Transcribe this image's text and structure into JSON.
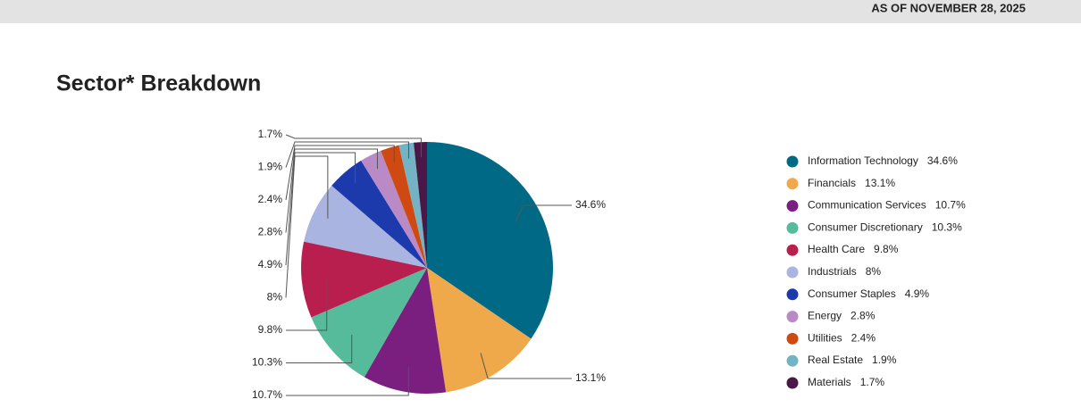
{
  "header": {
    "as_of": "AS OF  NOVEMBER 28, 2025"
  },
  "chart_data": {
    "type": "pie",
    "title": "Sector* Breakdown",
    "categories": [
      "Information Technology",
      "Financials",
      "Communication Services",
      "Consumer Discretionary",
      "Health Care",
      "Industrials",
      "Consumer Staples",
      "Energy",
      "Utilities",
      "Real Estate",
      "Materials"
    ],
    "values": [
      34.6,
      13.1,
      10.7,
      10.3,
      9.8,
      8,
      4.9,
      2.8,
      2.4,
      1.9,
      1.7
    ],
    "value_labels": [
      "34.6%",
      "13.1%",
      "10.7%",
      "10.3%",
      "9.8%",
      "8%",
      "4.9%",
      "2.8%",
      "2.4%",
      "1.9%",
      "1.7%"
    ],
    "colors": [
      "#006a86",
      "#f0a94a",
      "#7a1f7f",
      "#56bb9b",
      "#b81f4e",
      "#a9b4e0",
      "#1c3aab",
      "#b98ac6",
      "#cf4a12",
      "#73b3c3",
      "#4a1748"
    ],
    "legend": "right"
  }
}
